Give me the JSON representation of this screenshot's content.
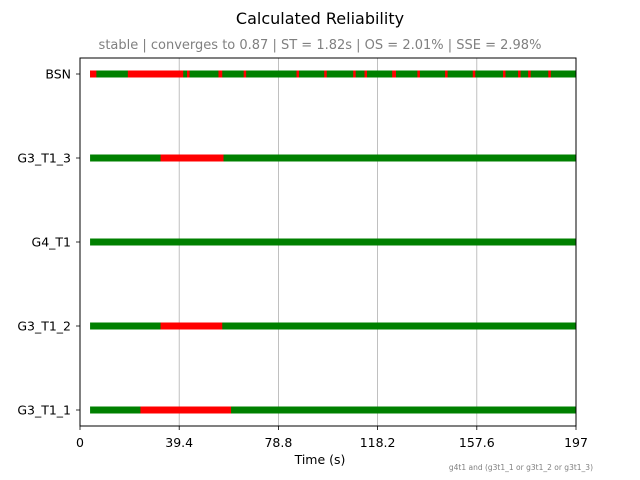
{
  "chart_data": {
    "type": "timeline",
    "title": "Calculated Reliability",
    "subtitle": "stable | converges to 0.87 | ST = 1.82s | OS = 2.01% | SSE = 2.98%",
    "xlabel": "Time (s)",
    "xlim": [
      0,
      197
    ],
    "x_ticks": [
      "0",
      "39.4",
      "78.8",
      "118.2",
      "157.6",
      "197"
    ],
    "x_tick_values": [
      0,
      39.4,
      78.8,
      118.2,
      157.6,
      197
    ],
    "grid": "vertical",
    "footnote": "g4t1 and (g3t1_1 or g3t1_2 or g3t1_3)",
    "colors": {
      "up": "#008000",
      "down": "#ff0000"
    },
    "rows": [
      {
        "name": "BSN",
        "start": 4,
        "end": 197,
        "down_intervals": [
          [
            4,
            6.5
          ],
          [
            19,
            41
          ],
          [
            42.5,
            43.5
          ],
          [
            55,
            56.5
          ],
          [
            65,
            66
          ],
          [
            86,
            87
          ],
          [
            97,
            98
          ],
          [
            108.5,
            109.5
          ],
          [
            113,
            114
          ],
          [
            124,
            125.5
          ],
          [
            134,
            135
          ],
          [
            145,
            146
          ],
          [
            156,
            157
          ],
          [
            168,
            169
          ],
          [
            174,
            175
          ],
          [
            178,
            179
          ],
          [
            186,
            187
          ]
        ]
      },
      {
        "name": "G3_T1_3",
        "start": 4,
        "end": 197,
        "down_intervals": [
          [
            32,
            57
          ]
        ]
      },
      {
        "name": "G4_T1",
        "start": 4,
        "end": 197,
        "down_intervals": []
      },
      {
        "name": "G3_T1_2",
        "start": 4,
        "end": 197,
        "down_intervals": [
          [
            32,
            56.5
          ]
        ]
      },
      {
        "name": "G3_T1_1",
        "start": 4,
        "end": 197,
        "down_intervals": [
          [
            24,
            60
          ]
        ]
      }
    ]
  }
}
